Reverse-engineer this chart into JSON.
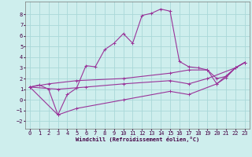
{
  "xlabel": "Windchill (Refroidissement éolien,°C)",
  "bg_color": "#ceeeed",
  "grid_color": "#aad8d8",
  "line_color": "#993399",
  "xlim": [
    -0.5,
    23.5
  ],
  "ylim": [
    -2.7,
    9.2
  ],
  "xticks": [
    0,
    1,
    2,
    3,
    4,
    5,
    6,
    7,
    8,
    9,
    10,
    11,
    12,
    13,
    14,
    15,
    16,
    17,
    18,
    19,
    20,
    21,
    22,
    23
  ],
  "yticks": [
    -2,
    -1,
    0,
    1,
    2,
    3,
    4,
    5,
    6,
    7,
    8
  ],
  "series1": [
    [
      0,
      1.2
    ],
    [
      1,
      1.4
    ],
    [
      2,
      1.0
    ],
    [
      3,
      -1.4
    ],
    [
      4,
      0.5
    ],
    [
      5,
      1.1
    ],
    [
      6,
      3.2
    ],
    [
      7,
      3.1
    ],
    [
      8,
      4.7
    ],
    [
      9,
      5.3
    ],
    [
      10,
      6.2
    ],
    [
      11,
      5.3
    ],
    [
      12,
      7.9
    ],
    [
      13,
      8.1
    ],
    [
      14,
      8.5
    ],
    [
      15,
      8.3
    ],
    [
      16,
      3.6
    ],
    [
      17,
      3.1
    ],
    [
      18,
      3.0
    ],
    [
      19,
      2.8
    ],
    [
      20,
      1.5
    ],
    [
      21,
      2.1
    ],
    [
      22,
      3.0
    ],
    [
      23,
      3.5
    ]
  ],
  "series2": [
    [
      0,
      1.2
    ],
    [
      2,
      1.5
    ],
    [
      5,
      1.8
    ],
    [
      10,
      2.0
    ],
    [
      15,
      2.5
    ],
    [
      17,
      2.8
    ],
    [
      19,
      2.8
    ],
    [
      20,
      2.0
    ],
    [
      21,
      2.2
    ],
    [
      22,
      3.0
    ],
    [
      23,
      3.5
    ]
  ],
  "series3": [
    [
      0,
      1.2
    ],
    [
      3,
      1.0
    ],
    [
      6,
      1.2
    ],
    [
      10,
      1.5
    ],
    [
      15,
      1.8
    ],
    [
      17,
      1.5
    ],
    [
      19,
      2.0
    ],
    [
      22,
      3.0
    ],
    [
      23,
      3.5
    ]
  ],
  "series4": [
    [
      0,
      1.2
    ],
    [
      3,
      -1.4
    ],
    [
      5,
      -0.8
    ],
    [
      10,
      0.0
    ],
    [
      15,
      0.8
    ],
    [
      17,
      0.5
    ],
    [
      20,
      1.5
    ],
    [
      22,
      3.0
    ],
    [
      23,
      3.5
    ]
  ]
}
